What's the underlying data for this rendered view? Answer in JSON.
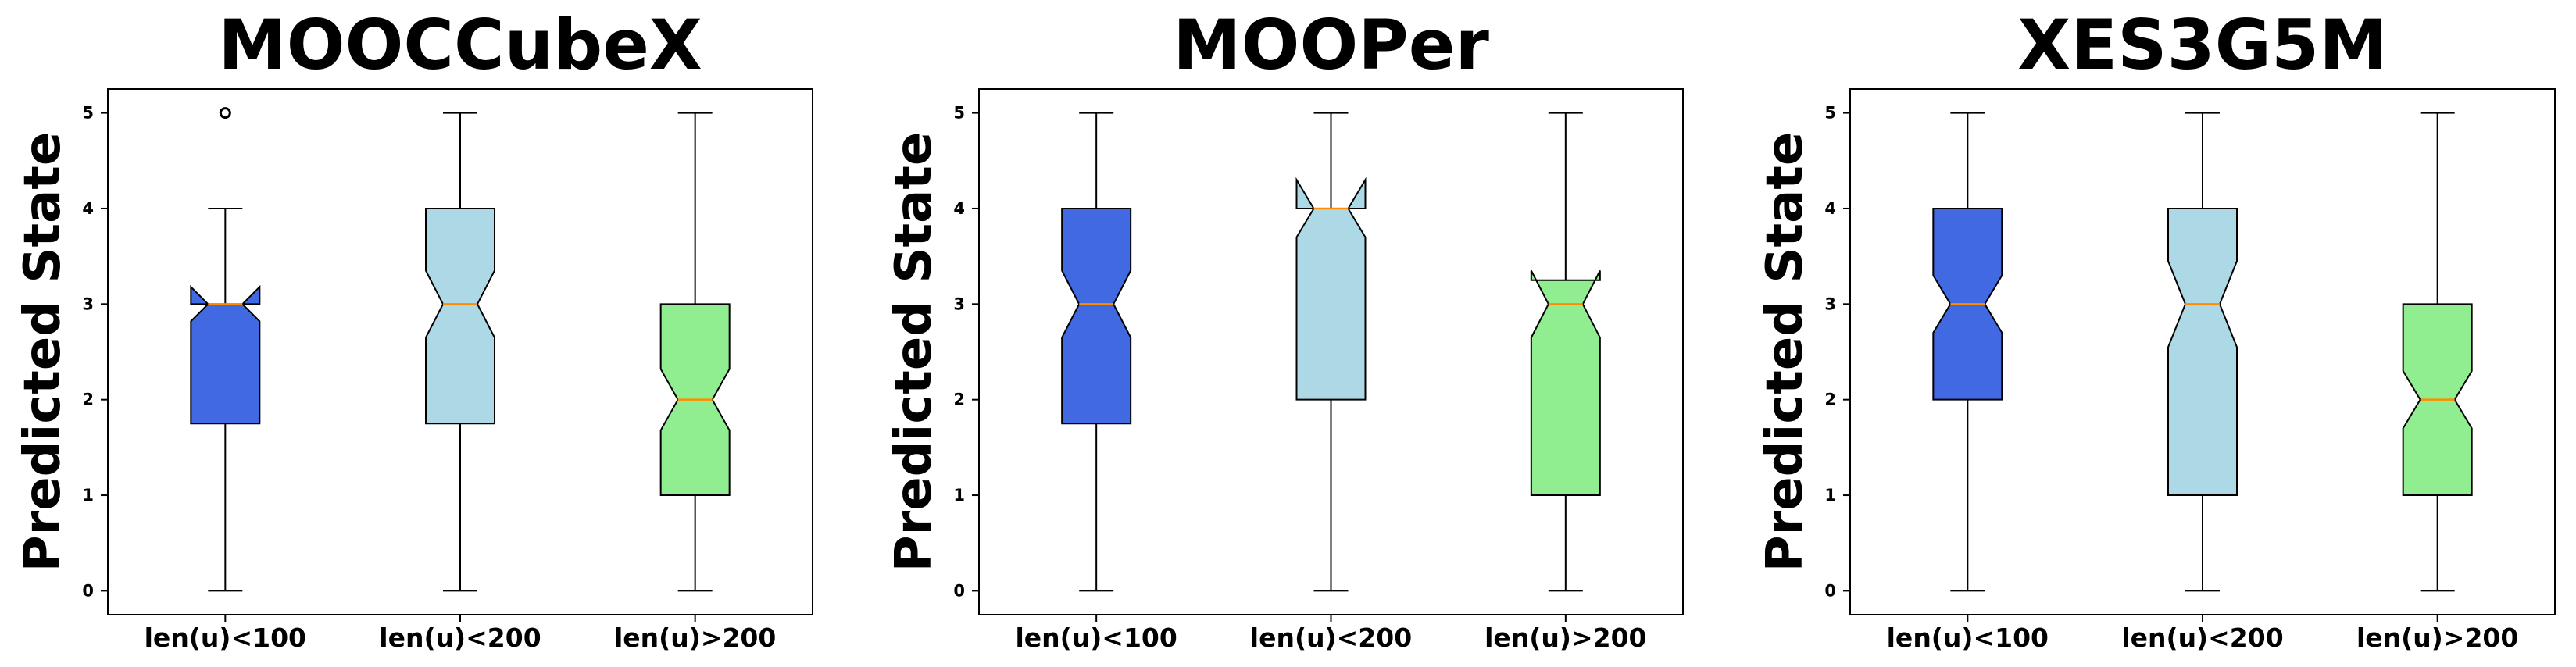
{
  "chart_data": [
    {
      "type": "boxplot",
      "title": "MOOCCubeX",
      "ylabel": "Predicted State",
      "xlabel": "",
      "ylim": [
        -0.25,
        5.25
      ],
      "yticks": [
        "0",
        "1",
        "2",
        "3",
        "4",
        "5"
      ],
      "categories": [
        "len(u)<100",
        "len(u)<200",
        "len(u)>200"
      ],
      "notched": true,
      "boxes": [
        {
          "whisker_low": 0,
          "q1": 1.75,
          "median": 3,
          "q3": 3,
          "whisker_high": 4,
          "notch_low": 2.82,
          "notch_high": 3.18,
          "outliers": [
            5
          ],
          "color": "#4169E1"
        },
        {
          "whisker_low": 0,
          "q1": 1.75,
          "median": 3,
          "q3": 4,
          "whisker_high": 5,
          "notch_low": 2.65,
          "notch_high": 3.35,
          "outliers": [],
          "color": "#ADD8E6"
        },
        {
          "whisker_low": 0,
          "q1": 1,
          "median": 2,
          "q3": 3,
          "whisker_high": 5,
          "notch_low": 1.68,
          "notch_high": 2.32,
          "outliers": [],
          "color": "#90EE90"
        }
      ]
    },
    {
      "type": "boxplot",
      "title": "MOOPer",
      "ylabel": "Predicted State",
      "xlabel": "",
      "ylim": [
        -0.25,
        5.25
      ],
      "yticks": [
        "0",
        "1",
        "2",
        "3",
        "4",
        "5"
      ],
      "categories": [
        "len(u)<100",
        "len(u)<200",
        "len(u)>200"
      ],
      "notched": true,
      "boxes": [
        {
          "whisker_low": 0,
          "q1": 1.75,
          "median": 3,
          "q3": 4,
          "whisker_high": 5,
          "notch_low": 2.65,
          "notch_high": 3.35,
          "outliers": [],
          "color": "#4169E1"
        },
        {
          "whisker_low": 0,
          "q1": 2,
          "median": 4,
          "q3": 4,
          "whisker_high": 5,
          "notch_low": 3.7,
          "notch_high": 4.3,
          "outliers": [],
          "color": "#ADD8E6"
        },
        {
          "whisker_low": 0,
          "q1": 1,
          "median": 3,
          "q3": 3.25,
          "whisker_high": 5,
          "notch_low": 2.65,
          "notch_high": 3.35,
          "outliers": [],
          "color": "#90EE90"
        }
      ]
    },
    {
      "type": "boxplot",
      "title": "XES3G5M",
      "ylabel": "Predicted State",
      "xlabel": "",
      "ylim": [
        -0.25,
        5.25
      ],
      "yticks": [
        "0",
        "1",
        "2",
        "3",
        "4",
        "5"
      ],
      "categories": [
        "len(u)<100",
        "len(u)<200",
        "len(u)>200"
      ],
      "notched": true,
      "boxes": [
        {
          "whisker_low": 0,
          "q1": 2,
          "median": 3,
          "q3": 4,
          "whisker_high": 5,
          "notch_low": 2.7,
          "notch_high": 3.3,
          "outliers": [],
          "color": "#4169E1"
        },
        {
          "whisker_low": 0,
          "q1": 1,
          "median": 3,
          "q3": 4,
          "whisker_high": 5,
          "notch_low": 2.55,
          "notch_high": 3.45,
          "outliers": [],
          "color": "#ADD8E6"
        },
        {
          "whisker_low": 0,
          "q1": 1,
          "median": 2,
          "q3": 3,
          "whisker_high": 5,
          "notch_low": 1.7,
          "notch_high": 2.3,
          "outliers": [],
          "color": "#90EE90"
        }
      ]
    }
  ],
  "colors": {
    "median_line": "#FF8C00",
    "outline": "#000000"
  }
}
